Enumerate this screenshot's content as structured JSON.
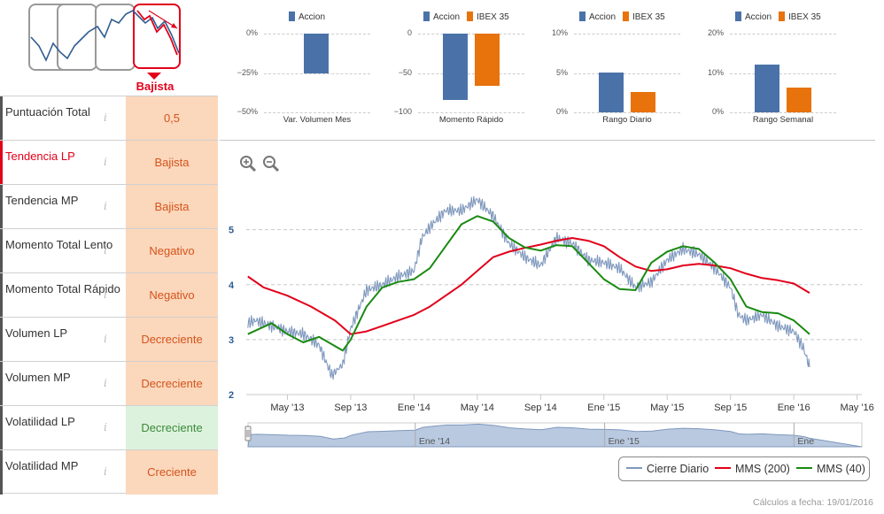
{
  "trend": {
    "label": "Bajista",
    "icons": [
      "trend-up-icon",
      "trend-flat-icon",
      "trend-up-strong-icon",
      "trend-down-icon"
    ]
  },
  "indicators": [
    {
      "name": "Puntuación Total",
      "value": "0,5",
      "tone": "orange",
      "highlight": false
    },
    {
      "name": "Tendencia LP",
      "value": "Bajista",
      "tone": "orange",
      "highlight": true
    },
    {
      "name": "Tendencia MP",
      "value": "Bajista",
      "tone": "orange",
      "highlight": false
    },
    {
      "name": "Momento Total Lento",
      "value": "Negativo",
      "tone": "orange",
      "highlight": false
    },
    {
      "name": "Momento Total Rápido",
      "value": "Negativo",
      "tone": "orange",
      "highlight": false
    },
    {
      "name": "Volumen LP",
      "value": "Decreciente",
      "tone": "orange",
      "highlight": false
    },
    {
      "name": "Volumen MP",
      "value": "Decreciente",
      "tone": "orange",
      "highlight": false
    },
    {
      "name": "Volatilidad LP",
      "value": "Decreciente",
      "tone": "green",
      "highlight": false
    },
    {
      "name": "Volatilidad MP",
      "value": "Creciente",
      "tone": "orange",
      "highlight": false
    }
  ],
  "info_glyph": "i",
  "colors": {
    "accion": "#4a72a8",
    "ibex": "#e8720c",
    "close": "#7f98bd",
    "mms200": "#e2001a",
    "mms40": "#1a8a12"
  },
  "mini_charts": [
    {
      "title": "Var. Volumen Mes",
      "legend": [
        "Accion"
      ],
      "ticks": [
        "0%",
        "−25%",
        "−50%"
      ],
      "ymin": -50,
      "ymax": 0,
      "values": [
        -25.5
      ]
    },
    {
      "title": "Momento Rápido",
      "legend": [
        "Accion",
        "IBEX 35"
      ],
      "ticks": [
        "0",
        "−50",
        "−100"
      ],
      "ymin": -100,
      "ymax": 0,
      "values": [
        -84,
        -66
      ]
    },
    {
      "title": "Rango Diario",
      "legend": [
        "Accion",
        "IBEX 35"
      ],
      "ticks": [
        "10%",
        "5%",
        "0%"
      ],
      "ymin": 0,
      "ymax": 10,
      "values": [
        5.1,
        2.6
      ]
    },
    {
      "title": "Rango Semanal",
      "legend": [
        "Accion",
        "IBEX 35"
      ],
      "ticks": [
        "20%",
        "10%",
        "0%"
      ],
      "ymin": 0,
      "ymax": 20,
      "values": [
        12.2,
        6.2
      ]
    }
  ],
  "chart_data": {
    "type": "line",
    "y_ticks": [
      "2",
      "3",
      "4",
      "5"
    ],
    "ylim": [
      2,
      5.8
    ],
    "x_ticks": [
      "May '13",
      "Sep '13",
      "Ene '14",
      "May '14",
      "Sep '14",
      "Ene '15",
      "May '15",
      "Sep '15",
      "Ene '16",
      "May '16"
    ],
    "x_tick_month": [
      4,
      8,
      12,
      16,
      20,
      24,
      28,
      32,
      36,
      40
    ],
    "x_range_months": [
      1.4,
      40.3
    ],
    "series": [
      {
        "name": "Cierre Diario",
        "month": [
          1.5,
          2,
          3,
          4,
          5,
          6,
          6.8,
          7.5,
          8,
          9,
          10,
          11,
          12,
          12.5,
          13,
          14,
          15,
          16,
          16.5,
          17,
          18,
          19,
          20,
          21,
          22,
          23,
          24,
          25,
          26,
          27,
          28,
          29,
          30,
          31,
          32,
          32.5,
          33,
          34,
          35,
          36,
          36.6,
          37
        ],
        "values": [
          3.3,
          3.35,
          3.25,
          3.15,
          3.1,
          2.9,
          2.35,
          2.55,
          3.2,
          3.9,
          4.0,
          4.15,
          4.25,
          4.85,
          5.05,
          5.35,
          5.35,
          5.55,
          5.4,
          5.25,
          4.75,
          4.5,
          4.35,
          4.85,
          4.75,
          4.45,
          4.4,
          4.3,
          3.95,
          4.05,
          4.45,
          4.65,
          4.55,
          4.3,
          3.95,
          3.45,
          3.35,
          3.45,
          3.25,
          3.15,
          2.85,
          2.5
        ]
      },
      {
        "name": "MMS (200)",
        "month": [
          1.5,
          2.5,
          4,
          5.5,
          7,
          8,
          9,
          10,
          11,
          12,
          13,
          14,
          15,
          16,
          17,
          18,
          19,
          20,
          21,
          22,
          23,
          24,
          25,
          26,
          27,
          28,
          29,
          30,
          31,
          32,
          33,
          34,
          35,
          36,
          37
        ],
        "values": [
          4.15,
          3.95,
          3.8,
          3.6,
          3.35,
          3.1,
          3.15,
          3.25,
          3.35,
          3.45,
          3.6,
          3.8,
          4.0,
          4.25,
          4.5,
          4.6,
          4.67,
          4.73,
          4.8,
          4.85,
          4.8,
          4.7,
          4.5,
          4.33,
          4.25,
          4.28,
          4.35,
          4.38,
          4.35,
          4.3,
          4.2,
          4.12,
          4.08,
          4.02,
          3.85
        ]
      },
      {
        "name": "MMS (40)",
        "month": [
          1.5,
          3,
          4,
          5,
          6,
          7.5,
          8,
          9,
          10,
          11,
          12,
          13,
          14,
          15,
          16,
          17,
          18,
          19,
          20,
          21,
          22,
          23,
          24,
          25,
          26,
          27,
          28,
          29,
          30,
          31,
          32,
          33,
          34,
          35,
          36,
          37
        ],
        "values": [
          3.1,
          3.3,
          3.1,
          2.95,
          3.05,
          2.8,
          3.0,
          3.6,
          3.95,
          4.05,
          4.1,
          4.3,
          4.7,
          5.1,
          5.25,
          5.15,
          4.85,
          4.68,
          4.62,
          4.72,
          4.7,
          4.4,
          4.1,
          3.92,
          3.9,
          4.4,
          4.6,
          4.7,
          4.65,
          4.4,
          4.1,
          3.6,
          3.5,
          3.48,
          3.35,
          3.1
        ]
      }
    ]
  },
  "navigator": {
    "labels": [
      "Ene '14",
      "Ene '15",
      "Ene"
    ]
  },
  "footer": {
    "calc_date": "Cálculos a fecha: 19/01/2016"
  }
}
